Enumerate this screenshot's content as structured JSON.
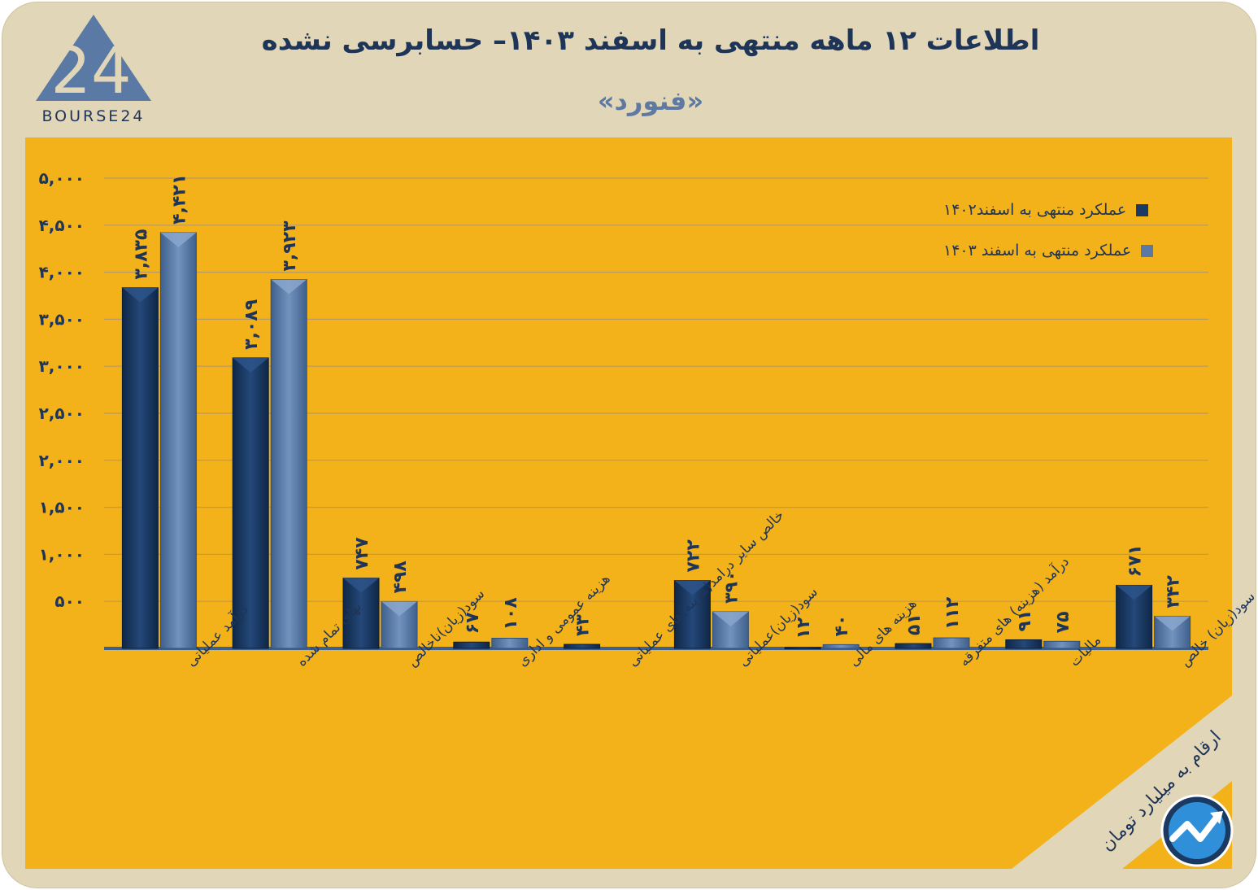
{
  "header": {
    "title": "اطلاعات ۱۲ ماهه منتهی به اسفند ۱۴۰۳– حسابرسی نشده",
    "subtitle": "«فنورد»"
  },
  "logo": {
    "text": "BOURSE24",
    "icon": "bourse24-logo-icon"
  },
  "unit_label": "ارقام به میلیارد تومان",
  "brand_icon": "trend-arrow-icon",
  "colors": {
    "background": "#e1d6b8",
    "plot_area": "#f4b21a",
    "series_1": "#1b3a63",
    "series_2": "#5a7aa5",
    "text": "#1f3557"
  },
  "chart_data": {
    "type": "bar",
    "title": "اطلاعات ۱۲ ماهه منتهی به اسفند ۱۴۰۳– حسابرسی نشده",
    "xlabel": "",
    "ylabel": "",
    "ylim": [
      0,
      5000
    ],
    "yticks": [
      500,
      1000,
      1500,
      2000,
      2500,
      3000,
      3500,
      4000,
      4500,
      5000
    ],
    "ytick_labels": [
      "۵۰۰",
      "۱,۰۰۰",
      "۱,۵۰۰",
      "۲,۰۰۰",
      "۲,۵۰۰",
      "۳,۰۰۰",
      "۳,۵۰۰",
      "۴,۰۰۰",
      "۴,۵۰۰",
      "۵,۰۰۰"
    ],
    "grid": true,
    "legend_position": "top-right",
    "categories": [
      "درآمد عملیاتی",
      "بهای تمام شده",
      "سود(زیان)ناخالص",
      "هزینه عمومی و اداری",
      "خالص سایر درامد(هزینه)های عملیاتی",
      "سود(زیان)عملیاتی",
      "هزینه های مالی",
      "درآمد (هزینه) های متفرقه",
      "مالیات",
      "سود(زیان) خالص"
    ],
    "series": [
      {
        "name": "عملکرد منتهی به اسفند۱۴۰۲",
        "values": [
          3835,
          3089,
          747,
          67,
          43,
          722,
          12,
          51,
          91,
          671
        ],
        "labels": [
          "۳,۸۳۵",
          "۳,۰۸۹",
          "۷۴۷",
          "۶۷",
          "۴۳",
          "۷۲۲",
          "۱۲",
          "۵۱",
          "۹۱",
          "۶۷۱"
        ]
      },
      {
        "name": "عملکرد منتهی به اسفند ۱۴۰۳",
        "values": [
          4421,
          3923,
          498,
          108,
          0,
          390,
          40,
          112,
          75,
          342
        ],
        "labels": [
          "۴,۴۲۱",
          "۳,۹۲۳",
          "۴۹۸",
          "۱۰۸",
          "",
          "۳۹۰",
          "۴۰",
          "۱۱۲",
          "۷۵",
          "۳۴۲"
        ]
      }
    ]
  }
}
